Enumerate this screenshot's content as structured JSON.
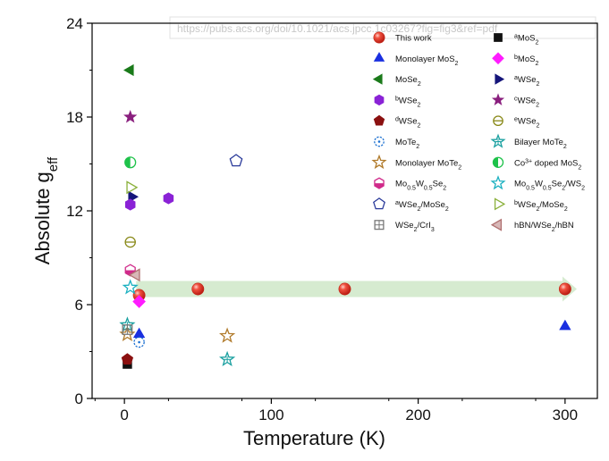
{
  "watermark": "https://pubs.acs.org/doi/10.1021/acs.jpcc.1c03267?fig=fig3&ref=pdf",
  "chart_data": {
    "type": "scatter",
    "title": "",
    "xlabel": "Temperature (K)",
    "ylabel": {
      "main": "Absolute g",
      "sub": "eff"
    },
    "xlim": [
      -22,
      322
    ],
    "ylim": [
      0,
      24
    ],
    "xticks": [
      0,
      100,
      200,
      300
    ],
    "yticks": [
      0,
      6,
      12,
      18,
      24
    ],
    "grid": false,
    "legend_position": "top-right",
    "trend_arrow": {
      "x": [
        8,
        308
      ],
      "y": 7.0,
      "color": "#cfe7c8"
    },
    "series": [
      {
        "key": "this_work",
        "label": [
          {
            "t": "This work"
          }
        ],
        "marker": "ball",
        "color": "#e8382e",
        "points": [
          [
            10,
            6.6
          ],
          [
            50,
            7.0
          ],
          [
            150,
            7.0
          ],
          [
            300,
            7.0
          ]
        ]
      },
      {
        "key": "a_mos2",
        "label": [
          {
            "t": "a",
            "s": "sup"
          },
          {
            "t": "MoS"
          },
          {
            "t": "2",
            "s": "sub"
          }
        ],
        "marker": "square",
        "color": "#111111",
        "points": [
          [
            2,
            2.2
          ]
        ]
      },
      {
        "key": "monolayer_mos2",
        "label": [
          {
            "t": "Monolayer  MoS"
          },
          {
            "t": "2",
            "s": "sub"
          }
        ],
        "marker": "triangle-up",
        "color": "#1a2fe0",
        "points": [
          [
            10,
            4.1
          ],
          [
            300,
            4.6
          ]
        ]
      },
      {
        "key": "b_mos2",
        "label": [
          {
            "t": "b",
            "s": "sup"
          },
          {
            "t": "MoS"
          },
          {
            "t": "2",
            "s": "sub"
          }
        ],
        "marker": "diamond",
        "color": "#ff1cff",
        "points": [
          [
            10,
            6.2
          ]
        ]
      },
      {
        "key": "mose2",
        "label": [
          {
            "t": "MoSe"
          },
          {
            "t": "2",
            "s": "sub"
          }
        ],
        "marker": "triangle-left",
        "color": "#1a7a1a",
        "points": [
          [
            4,
            21.0
          ]
        ]
      },
      {
        "key": "a_wse2",
        "label": [
          {
            "t": "a",
            "s": "sup"
          },
          {
            "t": "WSe"
          },
          {
            "t": "2",
            "s": "sub"
          }
        ],
        "marker": "triangle-right",
        "color": "#15157a",
        "points": [
          [
            5,
            12.9
          ]
        ]
      },
      {
        "key": "b_wse2",
        "label": [
          {
            "t": "b",
            "s": "sup"
          },
          {
            "t": "WSe"
          },
          {
            "t": "2",
            "s": "sub"
          }
        ],
        "marker": "hexagon",
        "color": "#8a22d6",
        "points": [
          [
            4,
            12.4
          ],
          [
            30,
            12.8
          ]
        ]
      },
      {
        "key": "c_wse2",
        "label": [
          {
            "t": "c",
            "s": "sup"
          },
          {
            "t": "WSe"
          },
          {
            "t": "2",
            "s": "sub"
          }
        ],
        "marker": "star",
        "color": "#8a1f7e",
        "points": [
          [
            4,
            18.0
          ]
        ]
      },
      {
        "key": "d_wse2",
        "label": [
          {
            "t": "d",
            "s": "sup"
          },
          {
            "t": "WSe"
          },
          {
            "t": "2",
            "s": "sub"
          }
        ],
        "marker": "pentagon",
        "color": "#8b1010",
        "points": [
          [
            2,
            2.5
          ]
        ]
      },
      {
        "key": "e_wse2",
        "label": [
          {
            "t": "e",
            "s": "sup"
          },
          {
            "t": "WSe"
          },
          {
            "t": "2",
            "s": "sub"
          }
        ],
        "marker": "circle-line",
        "color": "#8a8a1a",
        "points": [
          [
            4,
            10.0
          ]
        ]
      },
      {
        "key": "mote2",
        "label": [
          {
            "t": "MoTe"
          },
          {
            "t": "2",
            "s": "sub"
          }
        ],
        "marker": "circle-dot",
        "color": "#1a6fd0",
        "points": [
          [
            10,
            3.6
          ]
        ]
      },
      {
        "key": "bilayer_mote2",
        "label": [
          {
            "t": "Bilayer MoTe"
          },
          {
            "t": "2",
            "s": "sub"
          }
        ],
        "marker": "star-lines",
        "color": "#1aa0a0",
        "points": [
          [
            2,
            4.7
          ],
          [
            70,
            2.5
          ]
        ]
      },
      {
        "key": "monolayer_mote2",
        "label": [
          {
            "t": "Monolayer MoTe"
          },
          {
            "t": "2",
            "s": "sub"
          }
        ],
        "marker": "star-open",
        "color": "#b07a2a",
        "points": [
          [
            2,
            4.1
          ],
          [
            70,
            4.0
          ]
        ]
      },
      {
        "key": "co_mos2",
        "label": [
          {
            "t": "Co"
          },
          {
            "t": "3+",
            "s": "sup"
          },
          {
            "t": " doped MoS"
          },
          {
            "t": "2",
            "s": "sub"
          }
        ],
        "marker": "circle-half",
        "color": "#1ec24a",
        "points": [
          [
            4,
            15.1
          ]
        ]
      },
      {
        "key": "mowse2",
        "label": [
          {
            "t": "Mo"
          },
          {
            "t": "0.5",
            "s": "sub"
          },
          {
            "t": "W"
          },
          {
            "t": "0.5",
            "s": "sub"
          },
          {
            "t": "Se"
          },
          {
            "t": "2",
            "s": "sub"
          }
        ],
        "marker": "hexagon-half",
        "color": "#d02a8a",
        "points": [
          [
            4,
            8.2
          ]
        ]
      },
      {
        "key": "mowse2_ws2",
        "label": [
          {
            "t": "Mo"
          },
          {
            "t": "0.5",
            "s": "sub"
          },
          {
            "t": "W"
          },
          {
            "t": "0.5",
            "s": "sub"
          },
          {
            "t": "Se"
          },
          {
            "t": "2",
            "s": "sub"
          },
          {
            "t": "/WS"
          },
          {
            "t": "2",
            "s": "sub"
          }
        ],
        "marker": "star-open",
        "color": "#1ab0c0",
        "points": [
          [
            4,
            7.1
          ]
        ]
      },
      {
        "key": "a_wse2_mose2",
        "label": [
          {
            "t": "a",
            "s": "sup"
          },
          {
            "t": "WSe"
          },
          {
            "t": "2",
            "s": "sub"
          },
          {
            "t": "/MoSe"
          },
          {
            "t": "2",
            "s": "sub"
          }
        ],
        "marker": "pentagon-open",
        "color": "#2a3a9a",
        "points": [
          [
            76,
            15.2
          ]
        ]
      },
      {
        "key": "b_wse2_mose2",
        "label": [
          {
            "t": "b",
            "s": "sup"
          },
          {
            "t": "WSe"
          },
          {
            "t": "2",
            "s": "sub"
          },
          {
            "t": "/MoSe"
          },
          {
            "t": "2",
            "s": "sub"
          }
        ],
        "marker": "triangle-right-open",
        "color": "#8ab03a",
        "points": [
          [
            4,
            13.5
          ]
        ]
      },
      {
        "key": "wse2_cri3",
        "label": [
          {
            "t": "WSe"
          },
          {
            "t": "2",
            "s": "sub"
          },
          {
            "t": "/CrI"
          },
          {
            "t": "3",
            "s": "sub"
          }
        ],
        "marker": "square-cross",
        "color": "#777777",
        "points": [
          [
            2,
            4.4
          ]
        ]
      },
      {
        "key": "hbn_wse2_hbn",
        "label": [
          {
            "t": "hBN/WSe"
          },
          {
            "t": "2",
            "s": "sub"
          },
          {
            "t": "/hBN"
          }
        ],
        "marker": "triangle-left-soft",
        "color": "#b07070",
        "points": [
          [
            8,
            7.9
          ]
        ]
      }
    ]
  }
}
